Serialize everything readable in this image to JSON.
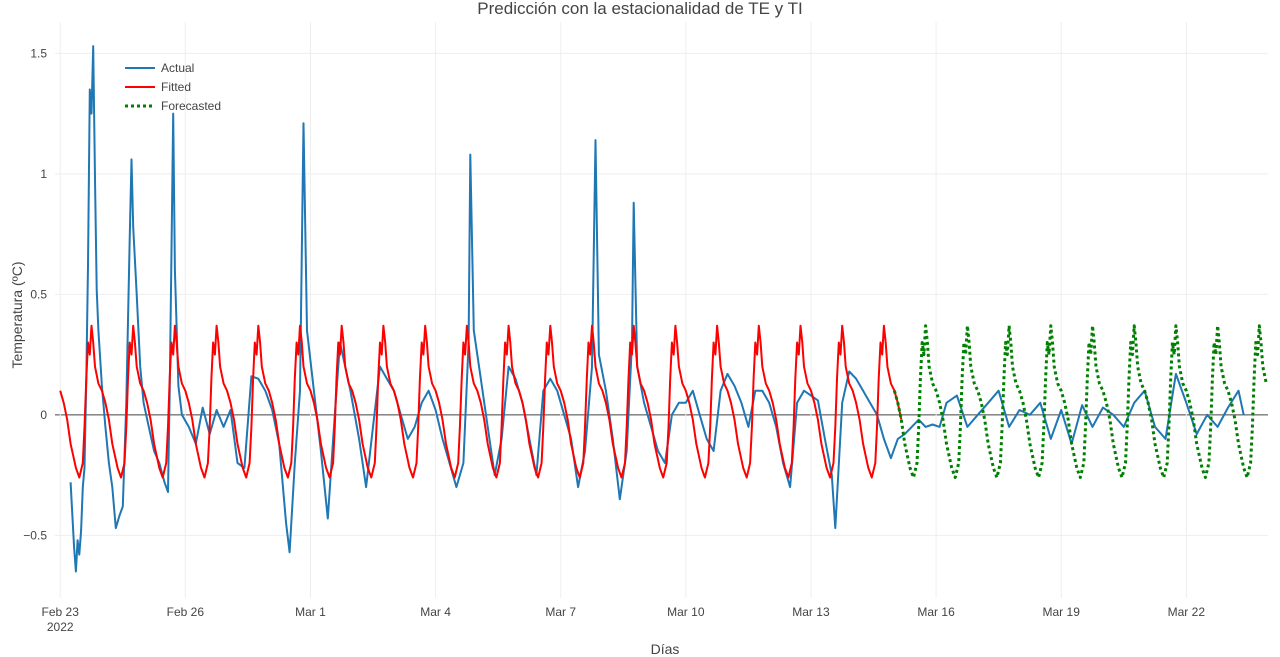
{
  "chart_data": {
    "type": "line",
    "title": "Predicción con la estacionalidad de TE y TI",
    "xlabel": "Días",
    "ylabel": "Temperatura (ºC)",
    "x_range": [
      "2022-02-22T21:00",
      "2022-03-23T23:00"
    ],
    "ylim": [
      -0.76,
      1.63
    ],
    "x_ticks": [
      {
        "date": "2022-02-23",
        "label": "Feb 23",
        "sub": "2022"
      },
      {
        "date": "2022-02-26",
        "label": "Feb 26"
      },
      {
        "date": "2022-03-01",
        "label": "Mar 1"
      },
      {
        "date": "2022-03-04",
        "label": "Mar 4"
      },
      {
        "date": "2022-03-07",
        "label": "Mar 7"
      },
      {
        "date": "2022-03-10",
        "label": "Mar 10"
      },
      {
        "date": "2022-03-13",
        "label": "Mar 13"
      },
      {
        "date": "2022-03-16",
        "label": "Mar 16"
      },
      {
        "date": "2022-03-19",
        "label": "Mar 19"
      },
      {
        "date": "2022-03-22",
        "label": "Mar 22"
      }
    ],
    "y_ticks": [
      {
        "value": -0.5,
        "label": "−0.5"
      },
      {
        "value": 0,
        "label": "0"
      },
      {
        "value": 0.5,
        "label": "0.5"
      },
      {
        "value": 1,
        "label": "1"
      },
      {
        "value": 1.5,
        "label": "1.5"
      }
    ],
    "grid": true,
    "legend_position": "top-left",
    "series": [
      {
        "name": "Actual",
        "color": "#1f77b4",
        "dash": "solid",
        "points": [
          [
            "2022-02-23T06:00",
            -0.28
          ],
          [
            "2022-02-23T07:00",
            -0.42
          ],
          [
            "2022-02-23T08:00",
            -0.55
          ],
          [
            "2022-02-23T09:00",
            -0.65
          ],
          [
            "2022-02-23T10:00",
            -0.52
          ],
          [
            "2022-02-23T11:00",
            -0.58
          ],
          [
            "2022-02-23T12:00",
            -0.48
          ],
          [
            "2022-02-23T13:00",
            -0.3
          ],
          [
            "2022-02-23T14:00",
            -0.22
          ],
          [
            "2022-02-23T15:00",
            0.15
          ],
          [
            "2022-02-23T16:00",
            0.62
          ],
          [
            "2022-02-23T17:00",
            1.35
          ],
          [
            "2022-02-23T18:00",
            1.25
          ],
          [
            "2022-02-23T19:00",
            1.53
          ],
          [
            "2022-02-23T20:00",
            0.98
          ],
          [
            "2022-02-23T21:00",
            0.52
          ],
          [
            "2022-02-23T22:00",
            0.35
          ],
          [
            "2022-02-24T00:00",
            0.12
          ],
          [
            "2022-02-24T02:00",
            -0.05
          ],
          [
            "2022-02-24T04:00",
            -0.2
          ],
          [
            "2022-02-24T06:00",
            -0.3
          ],
          [
            "2022-02-24T08:00",
            -0.47
          ],
          [
            "2022-02-24T10:00",
            -0.42
          ],
          [
            "2022-02-24T12:00",
            -0.38
          ],
          [
            "2022-02-24T14:00",
            0.05
          ],
          [
            "2022-02-24T16:00",
            0.73
          ],
          [
            "2022-02-24T17:00",
            1.06
          ],
          [
            "2022-02-24T18:00",
            0.78
          ],
          [
            "2022-02-24T20:00",
            0.5
          ],
          [
            "2022-02-24T22:00",
            0.2
          ],
          [
            "2022-02-25T00:00",
            0.05
          ],
          [
            "2022-02-25T03:00",
            -0.05
          ],
          [
            "2022-02-25T06:00",
            -0.15
          ],
          [
            "2022-02-25T09:00",
            -0.2
          ],
          [
            "2022-02-25T12:00",
            -0.28
          ],
          [
            "2022-02-25T14:00",
            -0.32
          ],
          [
            "2022-02-25T15:00",
            0.1
          ],
          [
            "2022-02-25T16:00",
            0.65
          ],
          [
            "2022-02-25T17:00",
            1.25
          ],
          [
            "2022-02-25T18:00",
            0.6
          ],
          [
            "2022-02-25T20:00",
            0.12
          ],
          [
            "2022-02-25T22:00",
            0.0
          ],
          [
            "2022-02-26T02:00",
            -0.05
          ],
          [
            "2022-02-26T06:00",
            -0.12
          ],
          [
            "2022-02-26T10:00",
            0.03
          ],
          [
            "2022-02-26T14:00",
            -0.08
          ],
          [
            "2022-02-26T18:00",
            0.02
          ],
          [
            "2022-02-26T22:00",
            -0.05
          ],
          [
            "2022-02-27T02:00",
            0.02
          ],
          [
            "2022-02-27T06:00",
            -0.2
          ],
          [
            "2022-02-27T10:00",
            -0.22
          ],
          [
            "2022-02-27T14:00",
            0.16
          ],
          [
            "2022-02-27T18:00",
            0.15
          ],
          [
            "2022-02-27T22:00",
            0.1
          ],
          [
            "2022-02-28T02:00",
            0.02
          ],
          [
            "2022-02-28T06:00",
            -0.12
          ],
          [
            "2022-02-28T10:00",
            -0.45
          ],
          [
            "2022-02-28T12:00",
            -0.57
          ],
          [
            "2022-02-28T15:00",
            -0.2
          ],
          [
            "2022-02-28T18:00",
            0.1
          ],
          [
            "2022-02-28T20:00",
            1.21
          ],
          [
            "2022-02-28T22:00",
            0.35
          ],
          [
            "2022-03-01T02:00",
            0.1
          ],
          [
            "2022-03-01T06:00",
            -0.15
          ],
          [
            "2022-03-01T10:00",
            -0.43
          ],
          [
            "2022-03-01T14:00",
            0.0
          ],
          [
            "2022-03-01T17:00",
            0.3
          ],
          [
            "2022-03-01T20:00",
            0.2
          ],
          [
            "2022-03-01T23:00",
            0.1
          ],
          [
            "2022-03-02T04:00",
            -0.1
          ],
          [
            "2022-03-02T08:00",
            -0.3
          ],
          [
            "2022-03-02T12:00",
            -0.05
          ],
          [
            "2022-03-02T16:00",
            0.2
          ],
          [
            "2022-03-02T20:00",
            0.15
          ],
          [
            "2022-03-03T00:00",
            0.1
          ],
          [
            "2022-03-03T04:00",
            0.0
          ],
          [
            "2022-03-03T08:00",
            -0.1
          ],
          [
            "2022-03-03T12:00",
            -0.05
          ],
          [
            "2022-03-03T16:00",
            0.05
          ],
          [
            "2022-03-03T20:00",
            0.1
          ],
          [
            "2022-03-04T00:00",
            0.02
          ],
          [
            "2022-03-04T04:00",
            -0.1
          ],
          [
            "2022-03-04T08:00",
            -0.2
          ],
          [
            "2022-03-04T12:00",
            -0.3
          ],
          [
            "2022-03-04T16:00",
            -0.2
          ],
          [
            "2022-03-04T19:00",
            0.3
          ],
          [
            "2022-03-04T20:00",
            1.08
          ],
          [
            "2022-03-04T22:00",
            0.35
          ],
          [
            "2022-03-05T02:00",
            0.15
          ],
          [
            "2022-03-05T06:00",
            -0.05
          ],
          [
            "2022-03-05T10:00",
            -0.25
          ],
          [
            "2022-03-05T14:00",
            -0.1
          ],
          [
            "2022-03-05T18:00",
            0.2
          ],
          [
            "2022-03-05T22:00",
            0.15
          ],
          [
            "2022-03-06T02:00",
            0.05
          ],
          [
            "2022-03-06T06:00",
            -0.1
          ],
          [
            "2022-03-06T10:00",
            -0.25
          ],
          [
            "2022-03-06T14:00",
            0.1
          ],
          [
            "2022-03-06T18:00",
            0.15
          ],
          [
            "2022-03-06T22:00",
            0.1
          ],
          [
            "2022-03-07T02:00",
            0.0
          ],
          [
            "2022-03-07T06:00",
            -0.1
          ],
          [
            "2022-03-07T10:00",
            -0.3
          ],
          [
            "2022-03-07T14:00",
            -0.15
          ],
          [
            "2022-03-07T18:00",
            0.2
          ],
          [
            "2022-03-07T20:00",
            1.14
          ],
          [
            "2022-03-07T22:00",
            0.25
          ],
          [
            "2022-03-08T02:00",
            0.1
          ],
          [
            "2022-03-08T06:00",
            -0.1
          ],
          [
            "2022-03-08T10:00",
            -0.35
          ],
          [
            "2022-03-08T14:00",
            -0.15
          ],
          [
            "2022-03-08T17:00",
            0.3
          ],
          [
            "2022-03-08T18:00",
            0.88
          ],
          [
            "2022-03-08T20:00",
            0.2
          ],
          [
            "2022-03-09T00:00",
            0.05
          ],
          [
            "2022-03-09T04:00",
            -0.05
          ],
          [
            "2022-03-09T08:00",
            -0.15
          ],
          [
            "2022-03-09T12:00",
            -0.2
          ],
          [
            "2022-03-09T16:00",
            0.0
          ],
          [
            "2022-03-09T20:00",
            0.05
          ],
          [
            "2022-03-10T00:00",
            0.05
          ],
          [
            "2022-03-10T04:00",
            0.1
          ],
          [
            "2022-03-10T08:00",
            0.0
          ],
          [
            "2022-03-10T12:00",
            -0.1
          ],
          [
            "2022-03-10T16:00",
            -0.15
          ],
          [
            "2022-03-10T20:00",
            0.1
          ],
          [
            "2022-03-11T00:00",
            0.17
          ],
          [
            "2022-03-11T04:00",
            0.12
          ],
          [
            "2022-03-11T08:00",
            0.05
          ],
          [
            "2022-03-11T12:00",
            -0.05
          ],
          [
            "2022-03-11T16:00",
            0.1
          ],
          [
            "2022-03-11T20:00",
            0.1
          ],
          [
            "2022-03-12T00:00",
            0.05
          ],
          [
            "2022-03-12T04:00",
            -0.05
          ],
          [
            "2022-03-12T08:00",
            -0.2
          ],
          [
            "2022-03-12T12:00",
            -0.3
          ],
          [
            "2022-03-12T16:00",
            0.05
          ],
          [
            "2022-03-12T20:00",
            0.1
          ],
          [
            "2022-03-13T00:00",
            0.08
          ],
          [
            "2022-03-13T04:00",
            0.06
          ],
          [
            "2022-03-13T08:00",
            -0.1
          ],
          [
            "2022-03-13T12:00",
            -0.25
          ],
          [
            "2022-03-13T14:00",
            -0.47
          ],
          [
            "2022-03-13T18:00",
            0.05
          ],
          [
            "2022-03-13T22:00",
            0.18
          ],
          [
            "2022-03-14T02:00",
            0.15
          ],
          [
            "2022-03-14T06:00",
            0.1
          ],
          [
            "2022-03-14T10:00",
            0.05
          ],
          [
            "2022-03-14T14:00",
            0.0
          ],
          [
            "2022-03-14T18:00",
            -0.1
          ],
          [
            "2022-03-14T22:00",
            -0.18
          ],
          [
            "2022-03-15T02:00",
            -0.1
          ],
          [
            "2022-03-15T06:00",
            -0.08
          ],
          [
            "2022-03-15T10:00",
            -0.05
          ],
          [
            "2022-03-15T14:00",
            -0.02
          ],
          [
            "2022-03-15T18:00",
            -0.05
          ],
          [
            "2022-03-15T22:00",
            -0.04
          ],
          [
            "2022-03-16T02:00",
            -0.05
          ],
          [
            "2022-03-16T06:00",
            0.05
          ],
          [
            "2022-03-16T12:00",
            0.08
          ],
          [
            "2022-03-16T18:00",
            -0.05
          ],
          [
            "2022-03-17T00:00",
            0.0
          ],
          [
            "2022-03-17T06:00",
            0.05
          ],
          [
            "2022-03-17T12:00",
            0.1
          ],
          [
            "2022-03-17T18:00",
            -0.05
          ],
          [
            "2022-03-18T00:00",
            0.02
          ],
          [
            "2022-03-18T06:00",
            0.0
          ],
          [
            "2022-03-18T12:00",
            0.05
          ],
          [
            "2022-03-18T18:00",
            -0.1
          ],
          [
            "2022-03-19T00:00",
            0.02
          ],
          [
            "2022-03-19T06:00",
            -0.12
          ],
          [
            "2022-03-19T12:00",
            0.04
          ],
          [
            "2022-03-19T18:00",
            -0.05
          ],
          [
            "2022-03-20T00:00",
            0.03
          ],
          [
            "2022-03-20T06:00",
            0.0
          ],
          [
            "2022-03-20T12:00",
            -0.05
          ],
          [
            "2022-03-20T18:00",
            0.05
          ],
          [
            "2022-03-21T00:00",
            0.1
          ],
          [
            "2022-03-21T06:00",
            -0.05
          ],
          [
            "2022-03-21T12:00",
            -0.1
          ],
          [
            "2022-03-21T18:00",
            0.17
          ],
          [
            "2022-03-22T00:00",
            0.05
          ],
          [
            "2022-03-22T06:00",
            -0.08
          ],
          [
            "2022-03-22T12:00",
            0.0
          ],
          [
            "2022-03-22T18:00",
            -0.05
          ],
          [
            "2022-03-23T00:00",
            0.03
          ],
          [
            "2022-03-23T06:00",
            0.1
          ],
          [
            "2022-03-23T09:00",
            0.0
          ]
        ]
      },
      {
        "name": "Fitted",
        "color": "#ff0000",
        "dash": "solid",
        "start": "2022-02-23T00:00",
        "end": "2022-03-15T04:00",
        "period_hours": 24,
        "daily_profile": [
          [
            "00:00",
            0.1
          ],
          [
            "02:00",
            0.05
          ],
          [
            "04:00",
            -0.02
          ],
          [
            "06:00",
            -0.12
          ],
          [
            "09:00",
            -0.22
          ],
          [
            "11:00",
            -0.26
          ],
          [
            "13:00",
            -0.2
          ],
          [
            "14:00",
            -0.05
          ],
          [
            "15:00",
            0.15
          ],
          [
            "16:00",
            0.3
          ],
          [
            "17:00",
            0.25
          ],
          [
            "18:00",
            0.37
          ],
          [
            "19:00",
            0.3
          ],
          [
            "20:00",
            0.2
          ],
          [
            "22:00",
            0.13
          ]
        ]
      },
      {
        "name": "Forecasted",
        "color": "#008000",
        "dash": "dot",
        "start": "2022-03-15T00:00",
        "end": "2022-03-23T23:00",
        "period_hours": 24,
        "daily_profile": [
          [
            "00:00",
            0.1
          ],
          [
            "02:00",
            0.05
          ],
          [
            "04:00",
            -0.02
          ],
          [
            "06:00",
            -0.12
          ],
          [
            "09:00",
            -0.22
          ],
          [
            "11:00",
            -0.26
          ],
          [
            "13:00",
            -0.2
          ],
          [
            "14:00",
            -0.05
          ],
          [
            "15:00",
            0.15
          ],
          [
            "16:00",
            0.3
          ],
          [
            "17:00",
            0.25
          ],
          [
            "18:00",
            0.37
          ],
          [
            "19:00",
            0.3
          ],
          [
            "20:00",
            0.2
          ],
          [
            "22:00",
            0.13
          ]
        ]
      }
    ]
  }
}
